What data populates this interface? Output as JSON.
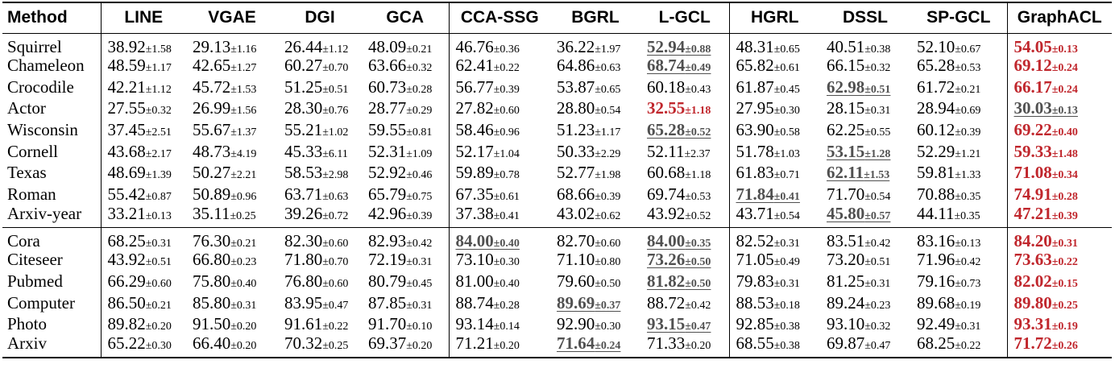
{
  "columns": [
    "Method",
    "LINE",
    "VGAE",
    "DGI",
    "GCA",
    "CCA-SSG",
    "BGRL",
    "L-GCL",
    "HGRL",
    "DSSL",
    "SP-GCL",
    "GraphACL"
  ],
  "groups": [
    {
      "rows": [
        {
          "name": "Squirrel",
          "cells": [
            {
              "v": "38.92",
              "s": "±1.58"
            },
            {
              "v": "29.13",
              "s": "±1.16"
            },
            {
              "v": "26.44",
              "s": "±1.12"
            },
            {
              "v": "48.09",
              "s": "±0.21"
            },
            {
              "v": "46.76",
              "s": "±0.36"
            },
            {
              "v": "36.22",
              "s": "±1.97"
            },
            {
              "v": "52.94",
              "s": "±0.88",
              "m": "second"
            },
            {
              "v": "48.31",
              "s": "±0.65"
            },
            {
              "v": "40.51",
              "s": "±0.38"
            },
            {
              "v": "52.10",
              "s": "±0.67"
            },
            {
              "v": "54.05",
              "s": "±0.13",
              "m": "best"
            }
          ]
        },
        {
          "name": "Chameleon",
          "cells": [
            {
              "v": "48.59",
              "s": "±1.17"
            },
            {
              "v": "42.65",
              "s": "±1.27"
            },
            {
              "v": "60.27",
              "s": "±0.70"
            },
            {
              "v": "63.66",
              "s": "±0.32"
            },
            {
              "v": "62.41",
              "s": "±0.22"
            },
            {
              "v": "64.86",
              "s": "±0.63"
            },
            {
              "v": "68.74",
              "s": "±0.49",
              "m": "second"
            },
            {
              "v": "65.82",
              "s": "±0.61"
            },
            {
              "v": "66.15",
              "s": "±0.32"
            },
            {
              "v": "65.28",
              "s": "±0.53"
            },
            {
              "v": "69.12",
              "s": "±0.24",
              "m": "best"
            }
          ]
        },
        {
          "name": "Crocodile",
          "cells": [
            {
              "v": "42.21",
              "s": "±1.12"
            },
            {
              "v": "45.72",
              "s": "±1.53"
            },
            {
              "v": "51.25",
              "s": "±0.51"
            },
            {
              "v": "60.73",
              "s": "±0.28"
            },
            {
              "v": "56.77",
              "s": "±0.39"
            },
            {
              "v": "53.87",
              "s": "±0.65"
            },
            {
              "v": "60.18",
              "s": "±0.43"
            },
            {
              "v": "61.87",
              "s": "±0.45"
            },
            {
              "v": "62.98",
              "s": "±0.51",
              "m": "second"
            },
            {
              "v": "61.72",
              "s": "±0.21"
            },
            {
              "v": "66.17",
              "s": "±0.24",
              "m": "best"
            }
          ]
        },
        {
          "name": "Actor",
          "cells": [
            {
              "v": "27.55",
              "s": "±0.32"
            },
            {
              "v": "26.99",
              "s": "±1.56"
            },
            {
              "v": "28.30",
              "s": "±0.76"
            },
            {
              "v": "28.77",
              "s": "±0.29"
            },
            {
              "v": "27.82",
              "s": "±0.60"
            },
            {
              "v": "28.80",
              "s": "±0.54"
            },
            {
              "v": "32.55",
              "s": "±1.18",
              "m": "best"
            },
            {
              "v": "27.95",
              "s": "±0.30"
            },
            {
              "v": "28.15",
              "s": "±0.31"
            },
            {
              "v": "28.94",
              "s": "±0.69"
            },
            {
              "v": "30.03",
              "s": "±0.13",
              "m": "second"
            }
          ]
        },
        {
          "name": "Wisconsin",
          "cells": [
            {
              "v": "37.45",
              "s": "±2.51"
            },
            {
              "v": "55.67",
              "s": "±1.37"
            },
            {
              "v": "55.21",
              "s": "±1.02"
            },
            {
              "v": "59.55",
              "s": "±0.81"
            },
            {
              "v": "58.46",
              "s": "±0.96"
            },
            {
              "v": "51.23",
              "s": "±1.17"
            },
            {
              "v": "65.28",
              "s": "±0.52",
              "m": "second"
            },
            {
              "v": "63.90",
              "s": "±0.58"
            },
            {
              "v": "62.25",
              "s": "±0.55"
            },
            {
              "v": "60.12",
              "s": "±0.39"
            },
            {
              "v": "69.22",
              "s": "±0.40",
              "m": "best"
            }
          ]
        },
        {
          "name": "Cornell",
          "cells": [
            {
              "v": "43.68",
              "s": "±2.17"
            },
            {
              "v": "48.73",
              "s": "±4.19"
            },
            {
              "v": "45.33",
              "s": "±6.11"
            },
            {
              "v": "52.31",
              "s": "±1.09"
            },
            {
              "v": "52.17",
              "s": "±1.04"
            },
            {
              "v": "50.33",
              "s": "±2.29"
            },
            {
              "v": "52.11",
              "s": "±2.37"
            },
            {
              "v": "51.78",
              "s": "±1.03"
            },
            {
              "v": "53.15",
              "s": "±1.28",
              "m": "second"
            },
            {
              "v": "52.29",
              "s": "±1.21"
            },
            {
              "v": "59.33",
              "s": "±1.48",
              "m": "best"
            }
          ]
        },
        {
          "name": "Texas",
          "cells": [
            {
              "v": "48.69",
              "s": "±1.39"
            },
            {
              "v": "50.27",
              "s": "±2.21"
            },
            {
              "v": "58.53",
              "s": "±2.98"
            },
            {
              "v": "52.92",
              "s": "±0.46"
            },
            {
              "v": "59.89",
              "s": "±0.78"
            },
            {
              "v": "52.77",
              "s": "±1.98"
            },
            {
              "v": "60.68",
              "s": "±1.18"
            },
            {
              "v": "61.83",
              "s": "±0.71"
            },
            {
              "v": "62.11",
              "s": "±1.53",
              "m": "second"
            },
            {
              "v": "59.81",
              "s": "±1.33"
            },
            {
              "v": "71.08",
              "s": "±0.34",
              "m": "best"
            }
          ]
        },
        {
          "name": "Roman",
          "cells": [
            {
              "v": "55.42",
              "s": "±0.87"
            },
            {
              "v": "50.89",
              "s": "±0.96"
            },
            {
              "v": "63.71",
              "s": "±0.63"
            },
            {
              "v": "65.79",
              "s": "±0.75"
            },
            {
              "v": "67.35",
              "s": "±0.61"
            },
            {
              "v": "68.66",
              "s": "±0.39"
            },
            {
              "v": "69.74",
              "s": "±0.53"
            },
            {
              "v": "71.84",
              "s": "±0.41",
              "m": "second"
            },
            {
              "v": "71.70",
              "s": "±0.54"
            },
            {
              "v": "70.88",
              "s": "±0.35"
            },
            {
              "v": "74.91",
              "s": "±0.28",
              "m": "best"
            }
          ]
        },
        {
          "name": "Arxiv-year",
          "cells": [
            {
              "v": "33.21",
              "s": "±0.13"
            },
            {
              "v": "35.11",
              "s": "±0.25"
            },
            {
              "v": "39.26",
              "s": "±0.72"
            },
            {
              "v": "42.96",
              "s": "±0.39"
            },
            {
              "v": "37.38",
              "s": "±0.41"
            },
            {
              "v": "43.02",
              "s": "±0.62"
            },
            {
              "v": "43.92",
              "s": "±0.52"
            },
            {
              "v": "43.71",
              "s": "±0.54"
            },
            {
              "v": "45.80",
              "s": "±0.57",
              "m": "second"
            },
            {
              "v": "44.11",
              "s": "±0.35"
            },
            {
              "v": "47.21",
              "s": "±0.39",
              "m": "best"
            }
          ]
        }
      ]
    },
    {
      "rows": [
        {
          "name": "Cora",
          "cells": [
            {
              "v": "68.25",
              "s": "±0.31"
            },
            {
              "v": "76.30",
              "s": "±0.21"
            },
            {
              "v": "82.30",
              "s": "±0.60"
            },
            {
              "v": "82.93",
              "s": "±0.42"
            },
            {
              "v": "84.00",
              "s": "±0.40",
              "m": "second"
            },
            {
              "v": "82.70",
              "s": "±0.60"
            },
            {
              "v": "84.00",
              "s": "±0.35",
              "m": "second"
            },
            {
              "v": "82.52",
              "s": "±0.31"
            },
            {
              "v": "83.51",
              "s": "±0.42"
            },
            {
              "v": "83.16",
              "s": "±0.13"
            },
            {
              "v": "84.20",
              "s": "±0.31",
              "m": "best"
            }
          ]
        },
        {
          "name": "Citeseer",
          "cells": [
            {
              "v": "43.92",
              "s": "±0.51"
            },
            {
              "v": "66.80",
              "s": "±0.23"
            },
            {
              "v": "71.80",
              "s": "±0.70"
            },
            {
              "v": "72.19",
              "s": "±0.31"
            },
            {
              "v": "73.10",
              "s": "±0.30"
            },
            {
              "v": "71.10",
              "s": "±0.80"
            },
            {
              "v": "73.26",
              "s": "±0.50",
              "m": "second"
            },
            {
              "v": "71.05",
              "s": "±0.49"
            },
            {
              "v": "73.20",
              "s": "±0.51"
            },
            {
              "v": "71.96",
              "s": "±0.42"
            },
            {
              "v": "73.63",
              "s": "±0.22",
              "m": "best"
            }
          ]
        },
        {
          "name": "Pubmed",
          "cells": [
            {
              "v": "66.29",
              "s": "±0.60"
            },
            {
              "v": "75.80",
              "s": "±0.40"
            },
            {
              "v": "76.80",
              "s": "±0.60"
            },
            {
              "v": "80.79",
              "s": "±0.45"
            },
            {
              "v": "81.00",
              "s": "±0.40"
            },
            {
              "v": "79.60",
              "s": "±0.50"
            },
            {
              "v": "81.82",
              "s": "±0.50",
              "m": "second"
            },
            {
              "v": "79.83",
              "s": "±0.31"
            },
            {
              "v": "81.25",
              "s": "±0.31"
            },
            {
              "v": "79.16",
              "s": "±0.73"
            },
            {
              "v": "82.02",
              "s": "±0.15",
              "m": "best"
            }
          ]
        },
        {
          "name": "Computer",
          "cells": [
            {
              "v": "86.50",
              "s": "±0.21"
            },
            {
              "v": "85.80",
              "s": "±0.31"
            },
            {
              "v": "83.95",
              "s": "±0.47"
            },
            {
              "v": "87.85",
              "s": "±0.31"
            },
            {
              "v": "88.74",
              "s": "±0.28"
            },
            {
              "v": "89.69",
              "s": "±0.37",
              "m": "second"
            },
            {
              "v": "88.72",
              "s": "±0.42"
            },
            {
              "v": "88.53",
              "s": "±0.18"
            },
            {
              "v": "89.24",
              "s": "±0.23"
            },
            {
              "v": "89.68",
              "s": "±0.19"
            },
            {
              "v": "89.80",
              "s": "±0.25",
              "m": "best"
            }
          ]
        },
        {
          "name": "Photo",
          "cells": [
            {
              "v": "89.82",
              "s": "±0.20"
            },
            {
              "v": "91.50",
              "s": "±0.20"
            },
            {
              "v": "91.61",
              "s": "±0.22"
            },
            {
              "v": "91.70",
              "s": "±0.10"
            },
            {
              "v": "93.14",
              "s": "±0.14"
            },
            {
              "v": "92.90",
              "s": "±0.30"
            },
            {
              "v": "93.15",
              "s": "±0.47",
              "m": "second"
            },
            {
              "v": "92.85",
              "s": "±0.38"
            },
            {
              "v": "93.10",
              "s": "±0.32"
            },
            {
              "v": "92.49",
              "s": "±0.31"
            },
            {
              "v": "93.31",
              "s": "±0.19",
              "m": "best"
            }
          ]
        },
        {
          "name": "Arxiv",
          "cells": [
            {
              "v": "65.22",
              "s": "±0.30"
            },
            {
              "v": "66.40",
              "s": "±0.20"
            },
            {
              "v": "70.32",
              "s": "±0.25"
            },
            {
              "v": "69.37",
              "s": "±0.20"
            },
            {
              "v": "71.21",
              "s": "±0.20"
            },
            {
              "v": "71.64",
              "s": "±0.24",
              "m": "second"
            },
            {
              "v": "71.33",
              "s": "±0.20"
            },
            {
              "v": "68.55",
              "s": "±0.38"
            },
            {
              "v": "69.87",
              "s": "±0.47"
            },
            {
              "v": "68.25",
              "s": "±0.22"
            },
            {
              "v": "71.72",
              "s": "±0.26",
              "m": "best"
            }
          ]
        }
      ]
    }
  ],
  "colors": {
    "best": "#c0262c",
    "second": "#505050",
    "rule": "#000000"
  }
}
